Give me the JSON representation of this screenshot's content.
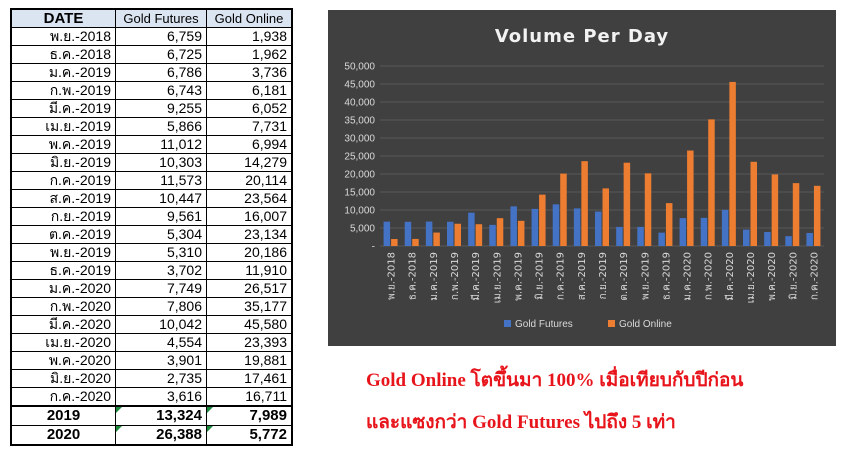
{
  "table": {
    "headers": {
      "date": "DATE",
      "gold_futures": "Gold Futures",
      "gold_online": "Gold Online"
    },
    "rows": [
      {
        "date": "พ.ย.-2018",
        "gold_futures": "6,759",
        "gold_online": "1,938"
      },
      {
        "date": "ธ.ค.-2018",
        "gold_futures": "6,725",
        "gold_online": "1,962"
      },
      {
        "date": "ม.ค.-2019",
        "gold_futures": "6,786",
        "gold_online": "3,736"
      },
      {
        "date": "ก.พ.-2019",
        "gold_futures": "6,743",
        "gold_online": "6,181"
      },
      {
        "date": "มี.ค.-2019",
        "gold_futures": "9,255",
        "gold_online": "6,052"
      },
      {
        "date": "เม.ย.-2019",
        "gold_futures": "5,866",
        "gold_online": "7,731"
      },
      {
        "date": "พ.ค.-2019",
        "gold_futures": "11,012",
        "gold_online": "6,994"
      },
      {
        "date": "มิ.ย.-2019",
        "gold_futures": "10,303",
        "gold_online": "14,279"
      },
      {
        "date": "ก.ค.-2019",
        "gold_futures": "11,573",
        "gold_online": "20,114"
      },
      {
        "date": "ส.ค.-2019",
        "gold_futures": "10,447",
        "gold_online": "23,564"
      },
      {
        "date": "ก.ย.-2019",
        "gold_futures": "9,561",
        "gold_online": "16,007"
      },
      {
        "date": "ต.ค.-2019",
        "gold_futures": "5,304",
        "gold_online": "23,134"
      },
      {
        "date": "พ.ย.-2019",
        "gold_futures": "5,310",
        "gold_online": "20,186"
      },
      {
        "date": "ธ.ค.-2019",
        "gold_futures": "3,702",
        "gold_online": "11,910"
      },
      {
        "date": "ม.ค.-2020",
        "gold_futures": "7,749",
        "gold_online": "26,517"
      },
      {
        "date": "ก.พ.-2020",
        "gold_futures": "7,806",
        "gold_online": "35,177"
      },
      {
        "date": "มี.ค.-2020",
        "gold_futures": "10,042",
        "gold_online": "45,580"
      },
      {
        "date": "เม.ย.-2020",
        "gold_futures": "4,554",
        "gold_online": "23,393"
      },
      {
        "date": "พ.ค.-2020",
        "gold_futures": "3,901",
        "gold_online": "19,881"
      },
      {
        "date": "มิ.ย.-2020",
        "gold_futures": "2,735",
        "gold_online": "17,461"
      },
      {
        "date": "ก.ค.-2020",
        "gold_futures": "3,616",
        "gold_online": "16,711"
      }
    ],
    "totals": [
      {
        "year": "2019",
        "gold_futures": "13,324",
        "gold_online": "7,989"
      },
      {
        "year": "2020",
        "gold_futures": "26,388",
        "gold_online": "5,772"
      }
    ]
  },
  "chart_data": {
    "type": "bar",
    "title": "Volume Per Day",
    "categories": [
      "พ.ย.-2018",
      "ธ.ค.-2018",
      "ม.ค.-2019",
      "ก.พ.-2019",
      "มี.ค.-2019",
      "เม.ย.-2019",
      "พ.ค.-2019",
      "มิ.ย.-2019",
      "ก.ค.-2019",
      "ส.ค.-2019",
      "ก.ย.-2019",
      "ต.ค.-2019",
      "พ.ย.-2019",
      "ธ.ค.-2019",
      "ม.ค.-2020",
      "ก.พ.-2020",
      "มี.ค.-2020",
      "เม.ย.-2020",
      "พ.ค.-2020",
      "มิ.ย.-2020",
      "ก.ค.-2020"
    ],
    "series": [
      {
        "name": "Gold Futures",
        "color": "#4472c4",
        "values": [
          6759,
          6725,
          6786,
          6743,
          9255,
          5866,
          11012,
          10303,
          11573,
          10447,
          9561,
          5304,
          5310,
          3702,
          7749,
          7806,
          10042,
          4554,
          3901,
          2735,
          3616
        ]
      },
      {
        "name": "Gold Online",
        "color": "#ed7d31",
        "values": [
          1938,
          1962,
          3736,
          6181,
          6052,
          7731,
          6994,
          14279,
          20114,
          23564,
          16007,
          23134,
          20186,
          11910,
          26517,
          35177,
          45580,
          23393,
          19881,
          17461,
          16711
        ]
      }
    ],
    "ylim": [
      0,
      50000
    ],
    "yticks": [
      0,
      5000,
      10000,
      15000,
      20000,
      25000,
      30000,
      35000,
      40000,
      45000,
      50000
    ],
    "ytick_labels": [
      "-",
      "5,000",
      "10,000",
      "15,000",
      "20,000",
      "25,000",
      "30,000",
      "35,000",
      "40,000",
      "45,000",
      "50,000"
    ],
    "grid": true,
    "legend": "bottom",
    "background": "#404040"
  },
  "caption": {
    "line1": "Gold Online โตขึ้นมา 100% เมื่อเทียบกับปีก่อน",
    "line2": "และแซงกว่า Gold Futures ไปถึง 5 เท่า"
  }
}
